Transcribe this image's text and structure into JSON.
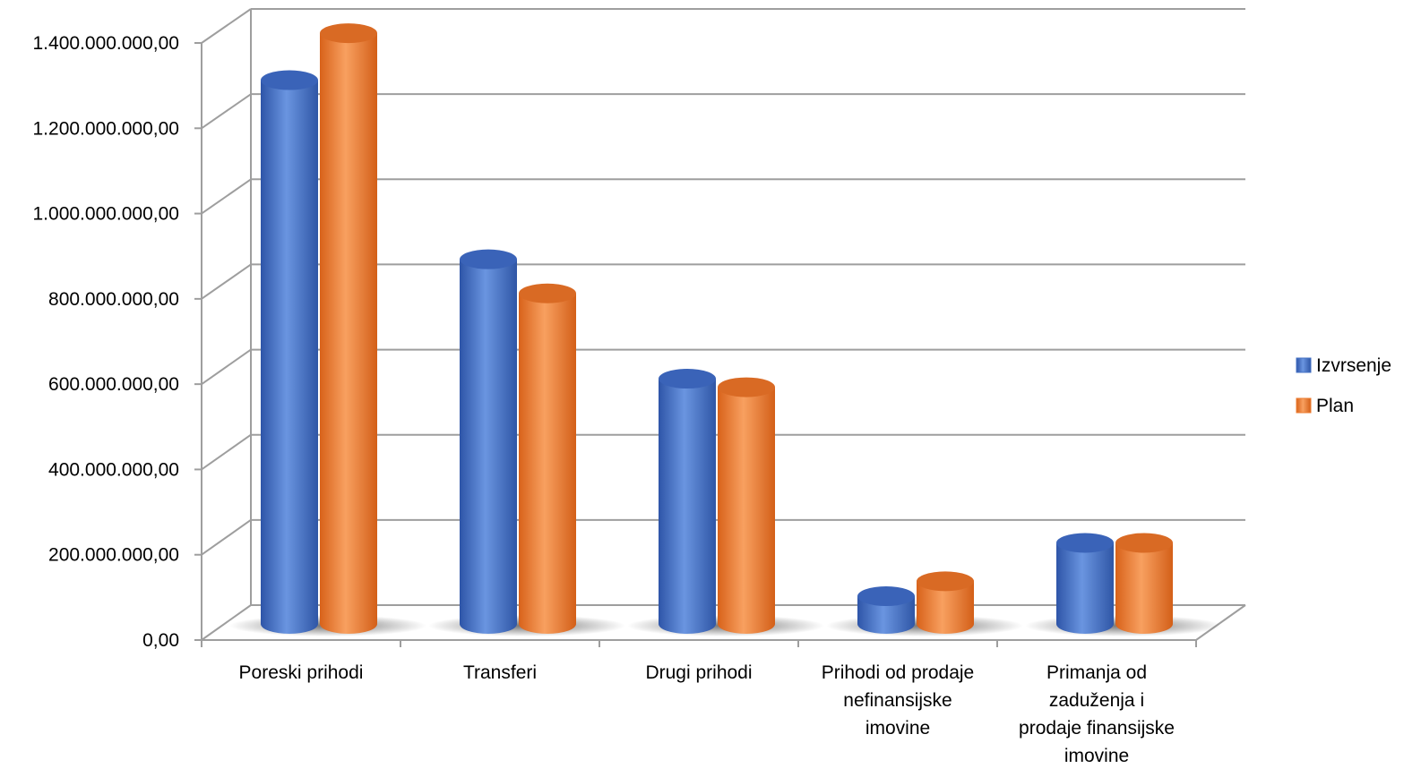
{
  "chart_data": {
    "type": "bar",
    "title": "",
    "xlabel": "",
    "ylabel": "",
    "categories": [
      [
        "Poreski prihodi"
      ],
      [
        "Transferi"
      ],
      [
        "Drugi prihodi"
      ],
      [
        "Prihodi od prodaje",
        "nefinansijske",
        "imovine"
      ],
      [
        "Primanja od",
        "zaduženja i",
        "prodaje finansijske",
        "imovine"
      ]
    ],
    "series": [
      {
        "name": "Izvrsenje",
        "color": "#4472C4",
        "values": [
          1275000000,
          855000000,
          575000000,
          65000000,
          190000000
        ]
      },
      {
        "name": "Plan",
        "color": "#ED7D31",
        "values": [
          1385000000,
          775000000,
          555000000,
          100000000,
          190000000
        ]
      }
    ],
    "ylim": [
      0,
      1400000000
    ],
    "ytick_labels": [
      "0,00",
      "200.000.000,00",
      "400.000.000,00",
      "600.000.000,00",
      "800.000.000,00",
      "1.000.000.000,00",
      "1.200.000.000,00",
      "1.400.000.000,00"
    ],
    "grid": true,
    "three_d": true,
    "legend_position": "right"
  }
}
